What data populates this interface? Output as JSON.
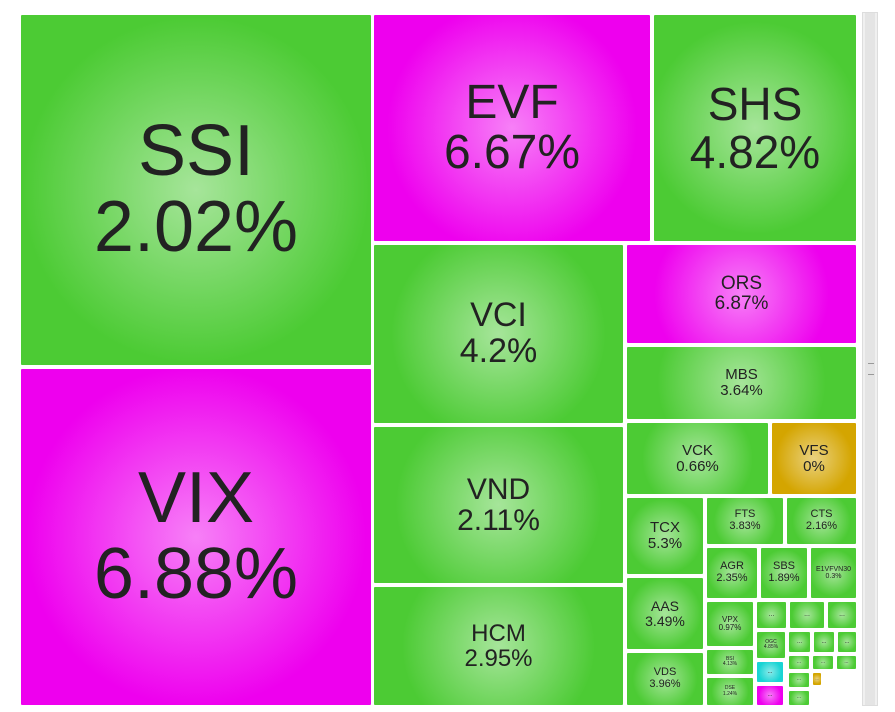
{
  "chart_data": {
    "type": "treemap",
    "categories": [
      "SSI",
      "VIX",
      "EVF",
      "SHS",
      "VCI",
      "ORS",
      "MBS",
      "VND",
      "VCK",
      "VFS",
      "HCM",
      "TCX",
      "FTS",
      "CTS",
      "AGR",
      "SBS",
      "E1VFVN30",
      "AAS",
      "VDS",
      "VPX",
      "...",
      "...",
      "...",
      "OGC",
      "...",
      "...",
      "...",
      "BSI",
      "DSE",
      "...",
      "...",
      "...",
      "...",
      "...",
      "...",
      "...",
      "..."
    ],
    "values": [
      2.02,
      6.88,
      6.67,
      4.82,
      4.2,
      6.87,
      3.64,
      2.11,
      0.66,
      0,
      2.95,
      5.3,
      3.83,
      2.16,
      2.35,
      1.89,
      0.3,
      3.49,
      3.96,
      0.97,
      null,
      null,
      null,
      4.85,
      null,
      null,
      null,
      4.13,
      1.24,
      null,
      null,
      null,
      null,
      null,
      null,
      null,
      null
    ],
    "value_labels": [
      "2.02%",
      "6.88%",
      "6.67%",
      "4.82%",
      "4.2%",
      "6.87%",
      "3.64%",
      "2.11%",
      "0.66%",
      "0%",
      "2.95%",
      "5.3%",
      "3.83%",
      "2.16%",
      "2.35%",
      "1.89%",
      "0.3%",
      "3.49%",
      "3.96%",
      "0.97%",
      null,
      null,
      null,
      "4.85%",
      null,
      null,
      null,
      "4.13%",
      "1.24%",
      null,
      null,
      null,
      null,
      null,
      null,
      null,
      null
    ],
    "colors": [
      "#4ccb34",
      "#ee00ee",
      "#ee00ee",
      "#4ccb34",
      "#4ccb34",
      "#ee00ee",
      "#4ccb34",
      "#4ccb34",
      "#4ccb34",
      "#d4a500",
      "#4ccb34",
      "#4ccb34",
      "#4ccb34",
      "#4ccb34",
      "#4ccb34",
      "#4ccb34",
      "#4ccb34",
      "#4ccb34",
      "#4ccb34",
      "#4ccb34",
      "#4ccb34",
      "#4ccb34",
      "#4ccb34",
      "#4ccb34",
      "#4ccb34",
      "#4ccb34",
      "#4ccb34",
      "#4ccb34",
      "#4ccb34",
      "#18d4d4",
      "#ee00ee",
      "#4ccb34",
      "#4ccb34",
      "#4ccb34",
      "#4ccb34",
      "#d4a500",
      "#4ccb34"
    ]
  }
}
